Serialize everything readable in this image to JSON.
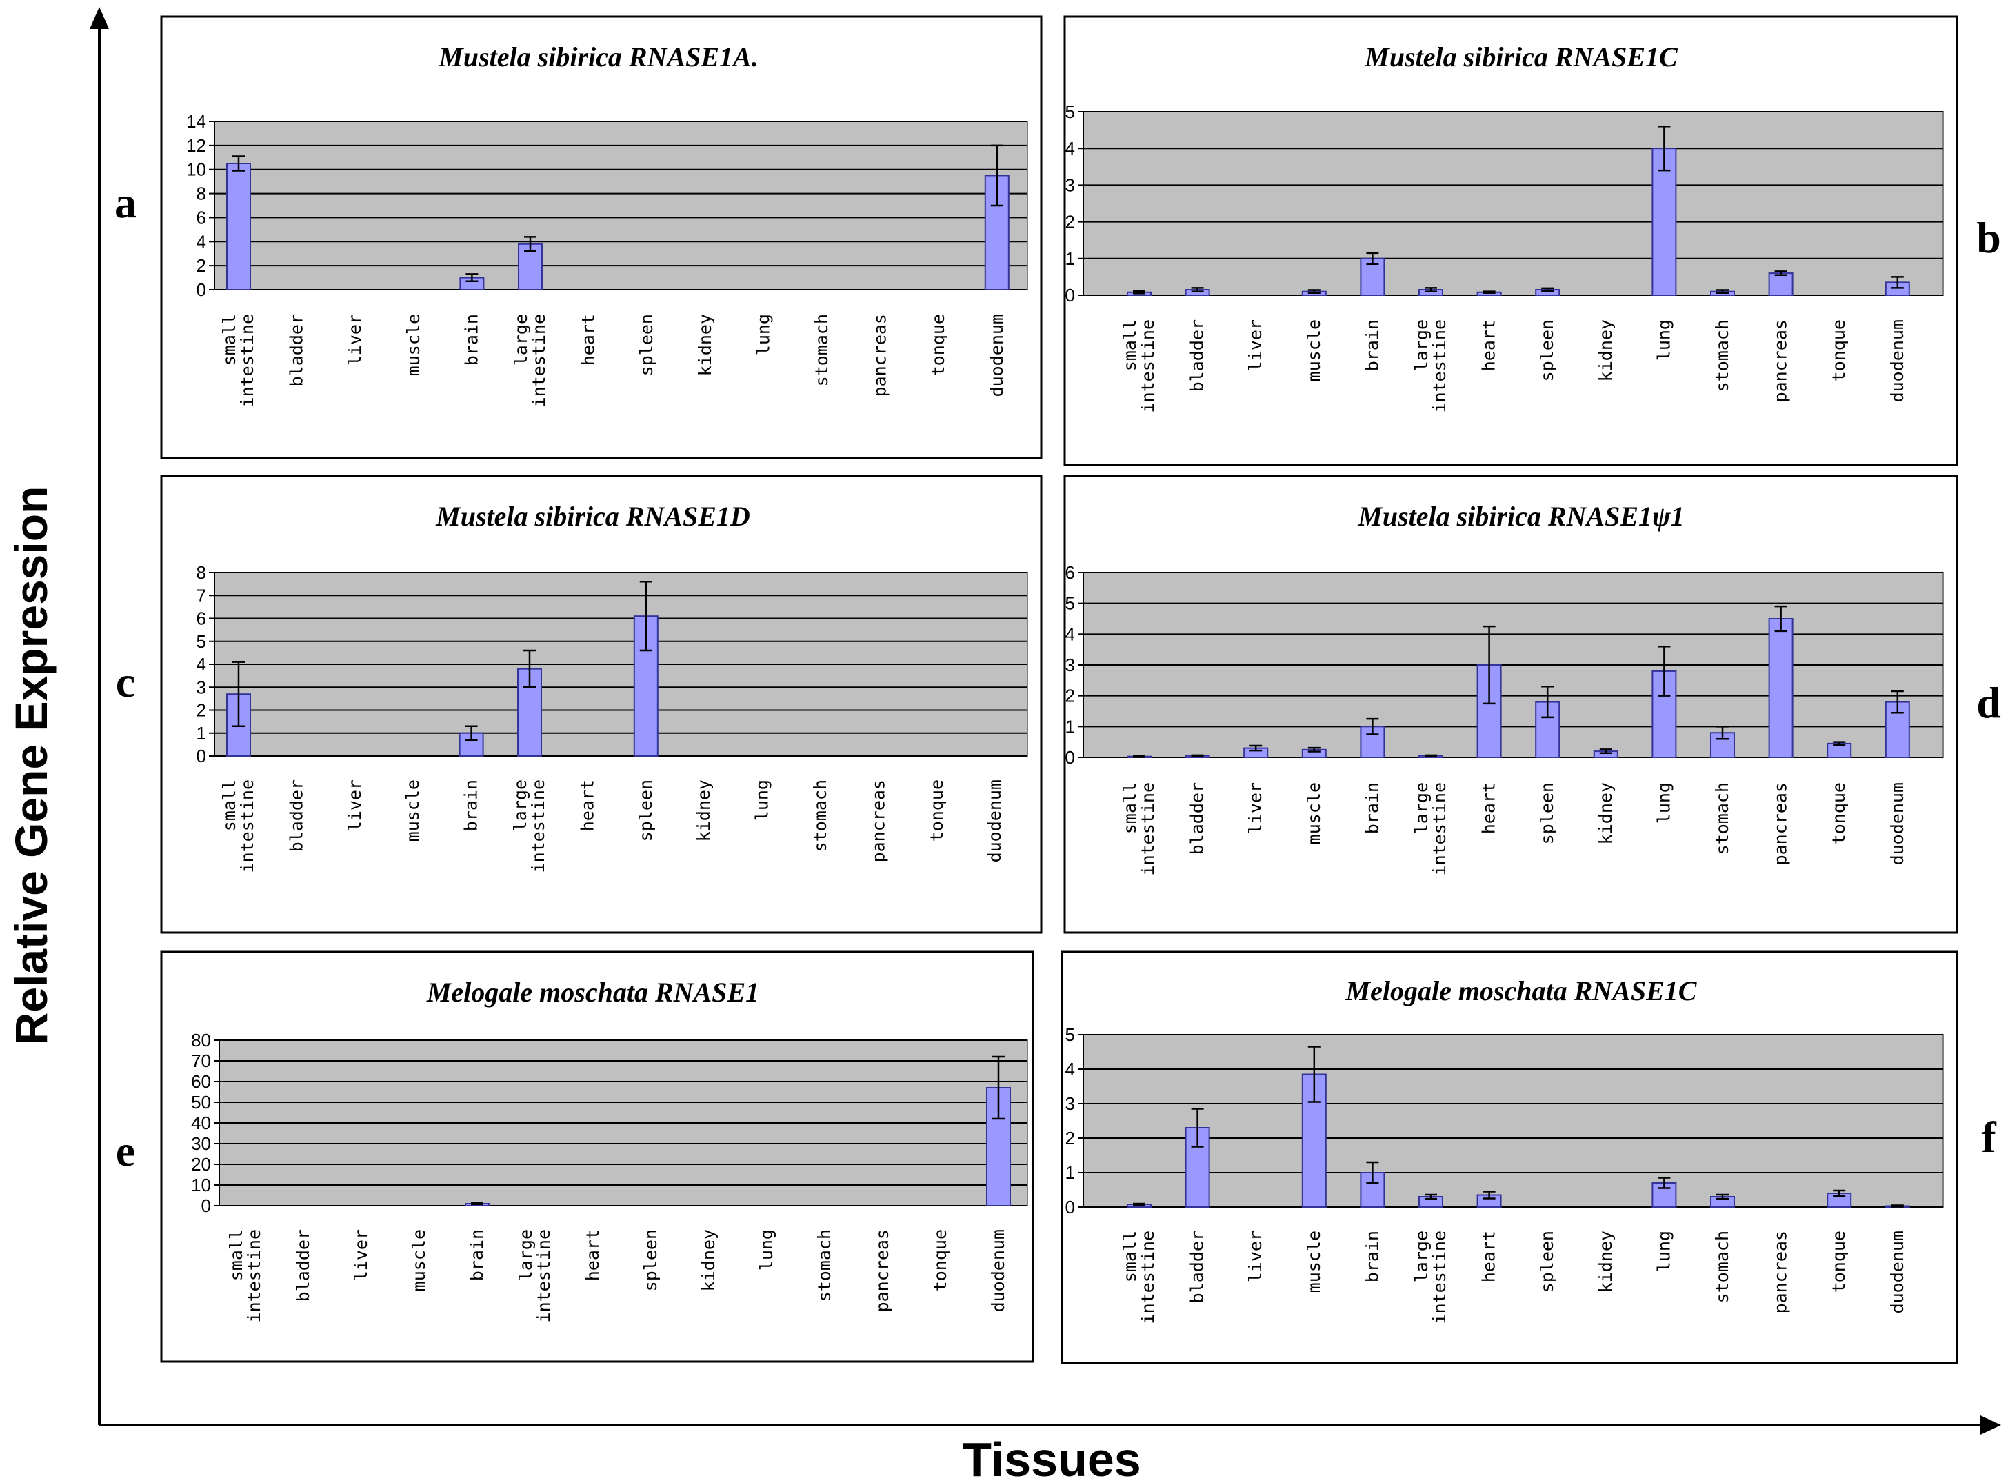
{
  "figure": {
    "ylabel": "Relative Gene Expression",
    "xlabel": "Tissues"
  },
  "colors": {
    "plot_bg": "#c0c0c0",
    "bar_fill": "#9999ff",
    "bar_stroke": "#333399",
    "grid": "#000000"
  },
  "chart_data": [
    {
      "letter": "a",
      "type": "bar",
      "title": "Mustela sibirica RNASE1A.",
      "ylim": [
        0,
        14
      ],
      "yticks": [
        0,
        2,
        4,
        6,
        8,
        10,
        12,
        14
      ],
      "categories": [
        "small intestine",
        "bladder",
        "liver",
        "muscle",
        "brain",
        "large intestine",
        "heart",
        "spleen",
        "kidney",
        "lung",
        "stomach",
        "pancreas",
        "tonque",
        "duodenum"
      ],
      "values": [
        10.5,
        0,
        0,
        0,
        1.0,
        3.8,
        0,
        0,
        0,
        0,
        0,
        0,
        0,
        9.5
      ],
      "errors": [
        0.6,
        0,
        0,
        0,
        0.3,
        0.6,
        0,
        0,
        0,
        0,
        0,
        0,
        0,
        2.5
      ]
    },
    {
      "letter": "b",
      "type": "bar",
      "title": "Mustela sibirica RNASE1C",
      "ylim": [
        0,
        5
      ],
      "yticks": [
        0,
        1,
        2,
        3,
        4,
        5
      ],
      "categories": [
        "small intestine",
        "bladder",
        "liver",
        "muscle",
        "brain",
        "large intestine",
        "heart",
        "spleen",
        "kidney",
        "lung",
        "stomach",
        "pancreas",
        "tonque",
        "duodenum"
      ],
      "values": [
        0.08,
        0.15,
        0,
        0.1,
        1.0,
        0.15,
        0.08,
        0.15,
        0,
        4.0,
        0.1,
        0.6,
        0,
        0.35
      ],
      "errors": [
        0.03,
        0.05,
        0,
        0.04,
        0.15,
        0.05,
        0.02,
        0.04,
        0,
        0.6,
        0.04,
        0.05,
        0,
        0.15
      ]
    },
    {
      "letter": "c",
      "type": "bar",
      "title": "Mustela sibirica RNASE1D",
      "ylim": [
        0,
        8
      ],
      "yticks": [
        0,
        1,
        2,
        3,
        4,
        5,
        6,
        7,
        8
      ],
      "categories": [
        "small intestine",
        "bladder",
        "liver",
        "muscle",
        "brain",
        "large intestine",
        "heart",
        "spleen",
        "kidney",
        "lung",
        "stomach",
        "pancreas",
        "tonque",
        "duodenum"
      ],
      "values": [
        2.7,
        0,
        0,
        0,
        1.0,
        3.8,
        0,
        6.1,
        0,
        0,
        0,
        0,
        0,
        0
      ],
      "errors": [
        1.4,
        0,
        0,
        0,
        0.3,
        0.8,
        0,
        1.5,
        0,
        0,
        0,
        0,
        0,
        0
      ]
    },
    {
      "letter": "d",
      "type": "bar",
      "title": "Mustela sibirica RNASE1ψ1",
      "ylim": [
        0,
        6
      ],
      "yticks": [
        0,
        1,
        2,
        3,
        4,
        5,
        6
      ],
      "categories": [
        "small intestine",
        "bladder",
        "liver",
        "muscle",
        "brain",
        "large intestine",
        "heart",
        "spleen",
        "kidney",
        "lung",
        "stomach",
        "pancreas",
        "tonque",
        "duodenum"
      ],
      "values": [
        0.03,
        0.05,
        0.3,
        0.25,
        1.0,
        0.05,
        3.0,
        1.8,
        0.2,
        2.8,
        0.8,
        4.5,
        0.45,
        1.8
      ],
      "errors": [
        0.02,
        0.02,
        0.08,
        0.06,
        0.25,
        0.02,
        1.25,
        0.5,
        0.06,
        0.8,
        0.2,
        0.4,
        0.05,
        0.35
      ]
    },
    {
      "letter": "e",
      "type": "bar",
      "title": "Melogale moschata RNASE1",
      "ylim": [
        0,
        80
      ],
      "yticks": [
        0,
        10,
        20,
        30,
        40,
        50,
        60,
        70,
        80
      ],
      "categories": [
        "small intestine",
        "bladder",
        "liver",
        "muscle",
        "brain",
        "large intestine",
        "heart",
        "spleen",
        "kidney",
        "lung",
        "stomach",
        "pancreas",
        "tonque",
        "duodenum"
      ],
      "values": [
        0,
        0,
        0,
        0,
        1.0,
        0,
        0,
        0,
        0,
        0,
        0,
        0,
        0,
        57
      ],
      "errors": [
        0,
        0,
        0,
        0,
        0.3,
        0,
        0,
        0,
        0,
        0,
        0,
        0,
        0,
        15
      ]
    },
    {
      "letter": "f",
      "type": "bar",
      "title": "Melogale moschata RNASE1C",
      "ylim": [
        0,
        5
      ],
      "yticks": [
        0,
        1,
        2,
        3,
        4,
        5
      ],
      "categories": [
        "small intestine",
        "bladder",
        "liver",
        "muscle",
        "brain",
        "large intestine",
        "heart",
        "spleen",
        "kidney",
        "lung",
        "stomach",
        "pancreas",
        "tonque",
        "duodenum"
      ],
      "values": [
        0.08,
        2.3,
        0,
        3.85,
        1.0,
        0.3,
        0.35,
        0,
        0,
        0.7,
        0.3,
        0,
        0.4,
        0.03
      ],
      "errors": [
        0.02,
        0.55,
        0,
        0.8,
        0.3,
        0.06,
        0.1,
        0,
        0,
        0.15,
        0.06,
        0,
        0.08,
        0.02
      ]
    }
  ]
}
